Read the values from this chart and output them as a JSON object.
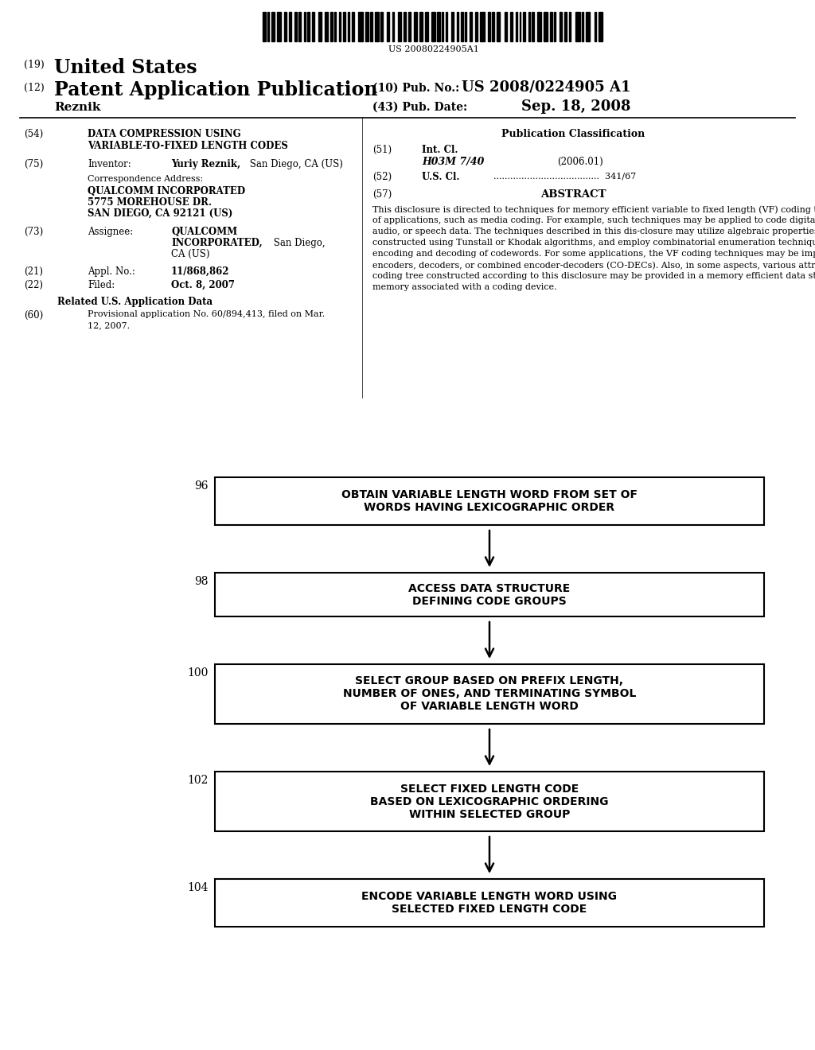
{
  "bg_color": "#ffffff",
  "barcode_text": "US 20080224905A1",
  "abstract_lines": [
    "This disclosure is directed to techniques for memory efficient variable to fixed length (VF) coding techniques for a variety",
    "of applications, such as media coding. For example, such techniques may be applied to code digital video, image,",
    "audio, or speech data. The techniques described in this dis-closure may utilize algebraic properties of VF coding trees",
    "constructed using Tunstall or Khodak algorithms, and employ combinatorial enumeration techniques for construction,",
    "encoding and decoding of codewords. For some applications, the VF coding techniques may be implemented within media",
    "encoders, decoders, or combined encoder-decoders (CO-DECs). Also, in some aspects, various attributes defining a VF",
    "coding tree constructed according to this disclosure may be provided in a memory efficient data structure stored in",
    "memory associated with a coding device."
  ],
  "boxes": [
    {
      "label": "96",
      "lines": [
        "OBTAIN VARIABLE LENGTH WORD FROM SET OF",
        "WORDS HAVING LEXICOGRAPHIC ORDER"
      ],
      "nlines": 2
    },
    {
      "label": "98",
      "lines": [
        "ACCESS DATA STRUCTURE",
        "DEFINING CODE GROUPS"
      ],
      "nlines": 2
    },
    {
      "label": "100",
      "lines": [
        "SELECT GROUP BASED ON PREFIX LENGTH,",
        "NUMBER OF ONES, AND TERMINATING SYMBOL",
        "OF VARIABLE LENGTH WORD"
      ],
      "nlines": 3
    },
    {
      "label": "102",
      "lines": [
        "SELECT FIXED LENGTH CODE",
        "BASED ON LEXICOGRAPHIC ORDERING",
        "WITHIN SELECTED GROUP"
      ],
      "nlines": 3
    },
    {
      "label": "104",
      "lines": [
        "ENCODE VARIABLE LENGTH WORD USING",
        "SELECTED FIXED LENGTH CODE"
      ],
      "nlines": 2
    }
  ]
}
